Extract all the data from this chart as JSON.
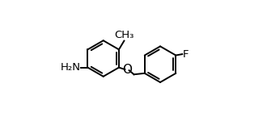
{
  "bg_color": "#ffffff",
  "line_color": "#000000",
  "text_color": "#000000",
  "figsize": [
    3.3,
    1.45
  ],
  "dpi": 100,
  "nh2_label": "H₂N",
  "ch3_label": "CH₃",
  "o_label": "O",
  "f_label": "F",
  "lcx": 0.24,
  "lcy": 0.5,
  "rcx": 0.73,
  "rcy": 0.45,
  "r": 0.155,
  "font_size_labels": 9.5
}
